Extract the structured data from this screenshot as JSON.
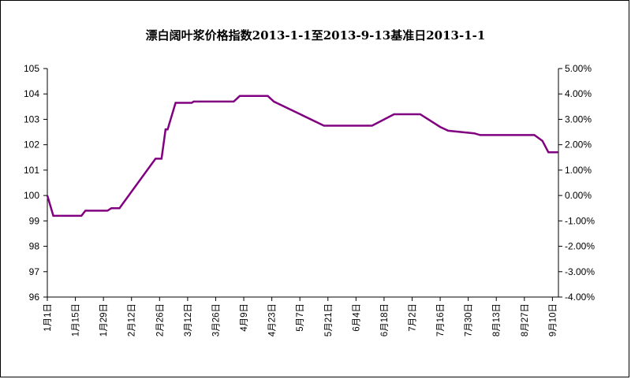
{
  "chart_data": {
    "type": "line",
    "title": "漂白阔叶浆价格指数2013-1-1至2013-9-13基准日2013-1-1",
    "xlabel": "",
    "ylabel": "",
    "y_left": {
      "min": 96,
      "max": 105,
      "ticks": [
        "96",
        "97",
        "98",
        "99",
        "100",
        "101",
        "102",
        "103",
        "104",
        "105"
      ]
    },
    "y_right": {
      "min": -4,
      "max": 5,
      "ticks": [
        "-4.00%",
        "-3.00%",
        "-2.00%",
        "-1.00%",
        "0.00%",
        "1.00%",
        "2.00%",
        "3.00%",
        "4.00%",
        "5.00%"
      ]
    },
    "x_ticks": [
      "1月1日",
      "1月15日",
      "1月29日",
      "2月12日",
      "2月26日",
      "3月12日",
      "3月26日",
      "4月9日",
      "4月23日",
      "5月7日",
      "5月21日",
      "6月4日",
      "6月18日",
      "7月2日",
      "7月16日",
      "7月30日",
      "8月13日",
      "8月27日",
      "9月10日"
    ],
    "x_range_days": [
      0,
      255
    ],
    "grid": false,
    "colors": {
      "line": "#800080",
      "axis": "#000000"
    },
    "series": [
      {
        "x": [
          0,
          3,
          17,
          19,
          30,
          32,
          36,
          54,
          57,
          59,
          60,
          64,
          66,
          72,
          73,
          93,
          96,
          110,
          113,
          138,
          142,
          153,
          162,
          173,
          186,
          196,
          200,
          213,
          216,
          217,
          236,
          243,
          247,
          250,
          255
        ],
        "values": [
          100,
          99.2,
          99.2,
          99.4,
          99.4,
          99.5,
          99.5,
          101.45,
          101.45,
          102.6,
          102.6,
          103.65,
          103.65,
          103.65,
          103.7,
          103.7,
          103.92,
          103.92,
          103.7,
          102.75,
          102.75,
          102.75,
          102.75,
          103.2,
          103.2,
          102.7,
          102.55,
          102.45,
          102.38,
          102.38,
          102.38,
          102.38,
          102.15,
          101.7,
          101.7
        ]
      }
    ]
  }
}
